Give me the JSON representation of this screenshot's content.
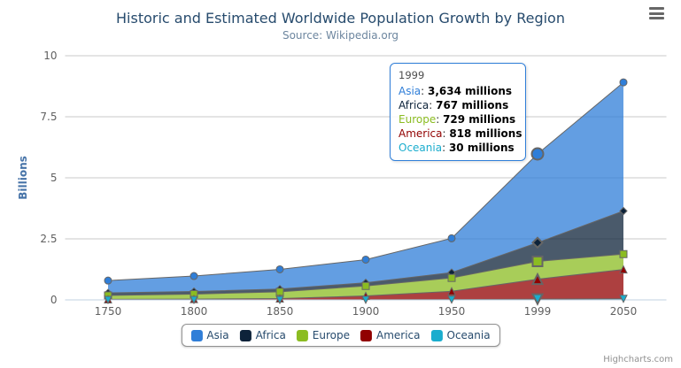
{
  "chart": {
    "title": "Historic and Estimated Worldwide Population Growth by Region",
    "subtitle": "Source: Wikipedia.org",
    "credits": "Highcharts.com"
  },
  "icons": {
    "export_menu": "hamburger-icon"
  },
  "tooltip": {
    "header": "1999",
    "border_color": "#2f7ed8",
    "rows": [
      {
        "name": "Asia",
        "value": "3,634 millions",
        "color": "#2f7ed8"
      },
      {
        "name": "Africa",
        "value": "767 millions",
        "color": "#0d233a"
      },
      {
        "name": "Europe",
        "value": "729 millions",
        "color": "#8bbc21"
      },
      {
        "name": "America",
        "value": "818 millions",
        "color": "#910000"
      },
      {
        "name": "Oceania",
        "value": "30 millions",
        "color": "#1aadce"
      }
    ]
  },
  "chart_data": {
    "type": "area",
    "stacking": "normal",
    "title": "Historic and Estimated Worldwide Population Growth by Region",
    "subtitle": "Source: Wikipedia.org",
    "categories": [
      "1750",
      "1800",
      "1850",
      "1900",
      "1950",
      "1999",
      "2050"
    ],
    "series": [
      {
        "name": "Asia",
        "color": "#2f7ed8",
        "marker": "circle",
        "values": [
          502,
          635,
          809,
          947,
          1402,
          3634,
          5268
        ]
      },
      {
        "name": "Africa",
        "color": "#0d233a",
        "marker": "diamond",
        "values": [
          106,
          107,
          111,
          133,
          221,
          767,
          1766
        ]
      },
      {
        "name": "Europe",
        "color": "#8bbc21",
        "marker": "square",
        "values": [
          163,
          203,
          276,
          408,
          547,
          729,
          628
        ]
      },
      {
        "name": "America",
        "color": "#910000",
        "marker": "triangle",
        "values": [
          18,
          31,
          54,
          156,
          339,
          818,
          1201
        ]
      },
      {
        "name": "Oceania",
        "color": "#1aadce",
        "marker": "triangle-down",
        "values": [
          2,
          2,
          2,
          6,
          13,
          30,
          46
        ]
      }
    ],
    "value_unit": "millions",
    "y_unit_divisor": 1000,
    "xlabel": "",
    "ylabel": "Billions",
    "ylim": [
      0,
      10
    ],
    "yticks": [
      0,
      2.5,
      5,
      7.5,
      10
    ],
    "grid": true,
    "line_color": "#666666",
    "fill_opacity": 0.75,
    "hover_category_index": 5,
    "legend_position": "bottom"
  }
}
